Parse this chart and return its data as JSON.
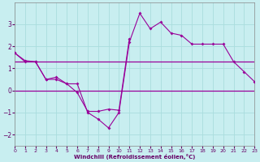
{
  "xlabel": "Windchill (Refroidissement éolien,°C)",
  "xlim": [
    0,
    23
  ],
  "ylim": [
    -2.5,
    4.0
  ],
  "yticks": [
    -2,
    -1,
    0,
    1,
    2,
    3
  ],
  "xticks": [
    0,
    1,
    2,
    3,
    4,
    5,
    6,
    7,
    8,
    9,
    10,
    11,
    12,
    13,
    14,
    15,
    16,
    17,
    18,
    19,
    20,
    21,
    22,
    23
  ],
  "background_color": "#c8eef0",
  "line_color": "#990099",
  "grid_color": "#aadddd",
  "hours": [
    0,
    1,
    2,
    3,
    4,
    5,
    6,
    7,
    8,
    9,
    10,
    11,
    12,
    13,
    14,
    15,
    16,
    17,
    18,
    19,
    20,
    21,
    22,
    23
  ],
  "curve1": [
    1.7,
    1.3,
    1.3,
    0.5,
    0.6,
    0.3,
    0.3,
    -1.0,
    -1.3,
    -1.7,
    -1.0,
    2.2,
    3.5,
    2.8,
    3.1,
    2.6,
    2.5,
    2.1,
    2.1,
    2.1,
    2.1,
    1.3,
    0.85,
    0.4
  ],
  "curve2_x": [
    0,
    1,
    2,
    3,
    4,
    5,
    6,
    7,
    8,
    9,
    10,
    11,
    12,
    13,
    14,
    15,
    16,
    17,
    18,
    19,
    20,
    21,
    22,
    23
  ],
  "curve2": [
    1.7,
    1.35,
    1.3,
    0.5,
    0.5,
    0.3,
    -0.1,
    -0.95,
    -0.95,
    -0.85,
    -0.9,
    2.35,
    null,
    null,
    null,
    null,
    null,
    null,
    null,
    null,
    null,
    null,
    null,
    null
  ],
  "hline1_y": 1.3,
  "hline2_y": 0.0,
  "hline_x": [
    0,
    23
  ]
}
